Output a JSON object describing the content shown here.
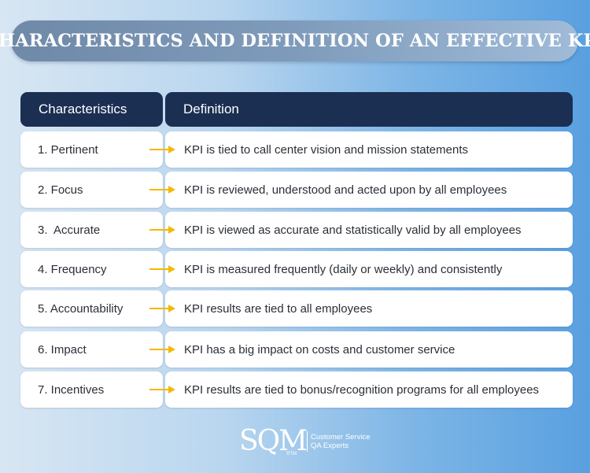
{
  "title": "CHARACTERISTICS AND DEFINITION OF AN EFFECTIVE KPI",
  "table": {
    "headers": [
      "Characteristics",
      "Definition"
    ],
    "rows": [
      {
        "characteristic": "1. Pertinent",
        "definition": "KPI is tied to call center vision and mission statements"
      },
      {
        "characteristic": "2. Focus",
        "definition": "KPI is reviewed, understood and acted upon by all employees"
      },
      {
        "characteristic": "3.  Accurate",
        "definition": "KPI is viewed as accurate and statistically valid by all employees"
      },
      {
        "characteristic": "4. Frequency",
        "definition": "KPI is measured frequently (daily or weekly) and consistently"
      },
      {
        "characteristic": "5. Accountability",
        "definition": "KPI results are tied to all employees"
      },
      {
        "characteristic": "6. Impact",
        "definition": "KPI has a big impact on costs and customer service"
      },
      {
        "characteristic": "7. Incentives",
        "definition": "KPI results are tied to bonus/recognition programs for all employees"
      }
    ]
  },
  "logo": {
    "name": "SQM",
    "mark": "®TM",
    "tagline_1": "Customer Service",
    "tagline_2": "QA Experts"
  },
  "colors": {
    "header_bg": "#1b2f52",
    "arrow": "#f5b800",
    "title_bar": "#7f9bbb"
  },
  "icons": {
    "row_arrow": "arrow-right-icon"
  }
}
